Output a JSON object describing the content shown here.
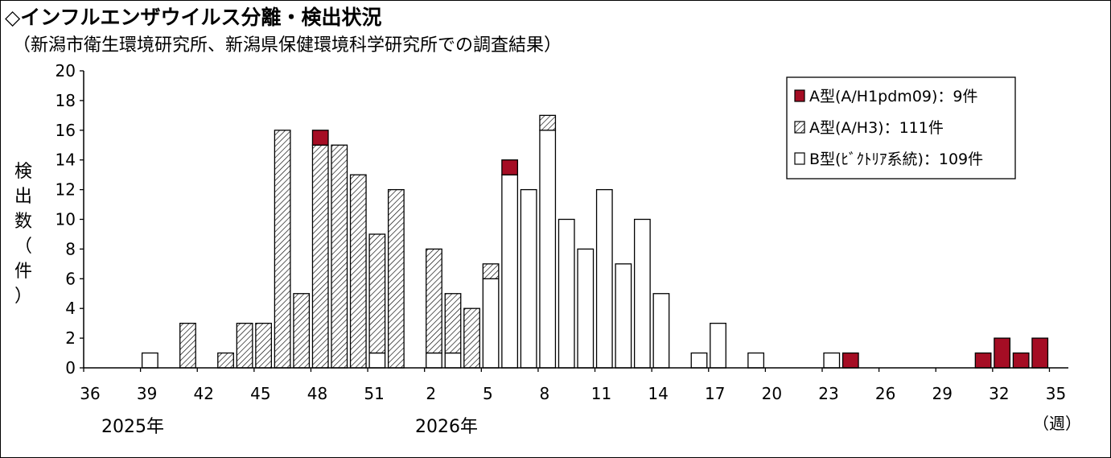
{
  "title": "◇インフルエンザウイルス分離・検出状況",
  "subtitle": "（新潟市衛生環境研究所、新潟県保健環境科学研究所での調査結果）",
  "ylabel_chars": [
    "検",
    "出",
    "数",
    "（",
    "件",
    "）"
  ],
  "year_labels": [
    "2025年",
    "2026年"
  ],
  "unit_label": "（週）",
  "colors": {
    "h1": "#a50d24",
    "h3_hatch": "#000000",
    "b": "#ffffff"
  },
  "chart_data": {
    "type": "bar",
    "stacked": true,
    "x_tick_labels": [
      "36",
      "39",
      "42",
      "45",
      "48",
      "51",
      "2",
      "5",
      "8",
      "11",
      "14",
      "17",
      "20",
      "23",
      "26",
      "29",
      "32",
      "35"
    ],
    "ylim": [
      0,
      20
    ],
    "y_ticks": [
      0,
      2,
      4,
      6,
      8,
      10,
      12,
      14,
      16,
      18,
      20
    ],
    "grid": false,
    "legend_position": "top-right",
    "categories": [
      "36",
      "37",
      "38",
      "39",
      "40",
      "41",
      "42",
      "43",
      "44",
      "45",
      "46",
      "47",
      "48",
      "49",
      "50",
      "51",
      "52",
      "1",
      "2",
      "3",
      "4",
      "5",
      "6",
      "7",
      "8",
      "9",
      "10",
      "11",
      "12",
      "13",
      "14",
      "15",
      "16",
      "17",
      "18",
      "19",
      "20",
      "21",
      "22",
      "23",
      "24",
      "25",
      "26",
      "27",
      "28",
      "29",
      "30",
      "31",
      "32",
      "33",
      "34",
      "35"
    ],
    "series": [
      {
        "name": "A型(A/H1pdm09)：9件",
        "key": "h1",
        "values": [
          0,
          0,
          0,
          0,
          0,
          0,
          0,
          0,
          0,
          0,
          0,
          0,
          1,
          0,
          0,
          0,
          0,
          0,
          0,
          0,
          0,
          0,
          1,
          0,
          0,
          0,
          0,
          0,
          0,
          0,
          0,
          0,
          0,
          0,
          0,
          0,
          0,
          0,
          0,
          0,
          1,
          0,
          0,
          0,
          0,
          0,
          0,
          1,
          2,
          1,
          2,
          0
        ]
      },
      {
        "name": "A型(A/H3)：111件",
        "key": "h3",
        "values": [
          0,
          0,
          0,
          0,
          0,
          3,
          0,
          1,
          3,
          3,
          16,
          5,
          15,
          15,
          13,
          8,
          12,
          0,
          7,
          4,
          4,
          1,
          0,
          0,
          1,
          0,
          0,
          0,
          0,
          0,
          0,
          0,
          0,
          0,
          0,
          0,
          0,
          0,
          0,
          0,
          0,
          0,
          0,
          0,
          0,
          0,
          0,
          0,
          0,
          0,
          0,
          0
        ]
      },
      {
        "name": "B型(ﾋﾞｸﾄﾘｱ系統)：109件",
        "key": "b",
        "values": [
          0,
          0,
          0,
          1,
          0,
          0,
          0,
          0,
          0,
          0,
          0,
          0,
          0,
          0,
          0,
          1,
          0,
          0,
          1,
          1,
          0,
          6,
          13,
          12,
          16,
          10,
          8,
          12,
          7,
          10,
          5,
          0,
          1,
          3,
          0,
          1,
          0,
          0,
          0,
          1,
          0,
          0,
          0,
          0,
          0,
          0,
          0,
          0,
          0,
          0,
          0,
          0
        ]
      }
    ]
  }
}
